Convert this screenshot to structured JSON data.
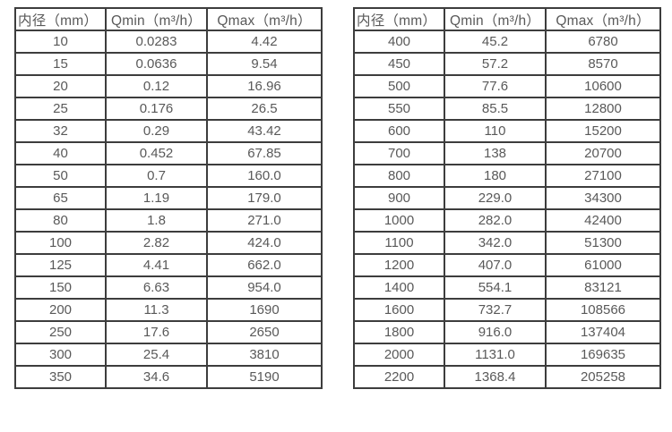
{
  "page": {
    "background": "#ffffff",
    "border_color": "#3d3d3d",
    "text_color": "#595959"
  },
  "tables": [
    {
      "name": "flow-range-table-small-diameters",
      "headers": [
        "内径（mm）",
        "Qmin（m³/h）",
        "Qmax（m³/h）"
      ],
      "rows": [
        [
          "10",
          "0.0283",
          "4.42"
        ],
        [
          "15",
          "0.0636",
          "9.54"
        ],
        [
          "20",
          "0.12",
          "16.96"
        ],
        [
          "25",
          "0.176",
          "26.5"
        ],
        [
          "32",
          "0.29",
          "43.42"
        ],
        [
          "40",
          "0.452",
          "67.85"
        ],
        [
          "50",
          "0.7",
          "160.0"
        ],
        [
          "65",
          "1.19",
          "179.0"
        ],
        [
          "80",
          "1.8",
          "271.0"
        ],
        [
          "100",
          "2.82",
          "424.0"
        ],
        [
          "125",
          "4.41",
          "662.0"
        ],
        [
          "150",
          "6.63",
          "954.0"
        ],
        [
          "200",
          "11.3",
          "1690"
        ],
        [
          "250",
          "17.6",
          "2650"
        ],
        [
          "300",
          "25.4",
          "3810"
        ],
        [
          "350",
          "34.6",
          "5190"
        ]
      ]
    },
    {
      "name": "flow-range-table-large-diameters",
      "headers": [
        "内径（mm）",
        "Qmin（m³/h）",
        "Qmax（m³/h）"
      ],
      "rows": [
        [
          "400",
          "45.2",
          "6780"
        ],
        [
          "450",
          "57.2",
          "8570"
        ],
        [
          "500",
          "77.6",
          "10600"
        ],
        [
          "550",
          "85.5",
          "12800"
        ],
        [
          "600",
          "110",
          "15200"
        ],
        [
          "700",
          "138",
          "20700"
        ],
        [
          "800",
          "180",
          "27100"
        ],
        [
          "900",
          "229.0",
          "34300"
        ],
        [
          "1000",
          "282.0",
          "42400"
        ],
        [
          "1100",
          "342.0",
          "51300"
        ],
        [
          "1200",
          "407.0",
          "61000"
        ],
        [
          "1400",
          "554.1",
          "83121"
        ],
        [
          "1600",
          "732.7",
          "108566"
        ],
        [
          "1800",
          "916.0",
          "137404"
        ],
        [
          "2000",
          "1131.0",
          "169635"
        ],
        [
          "2200",
          "1368.4",
          "205258"
        ]
      ]
    }
  ]
}
